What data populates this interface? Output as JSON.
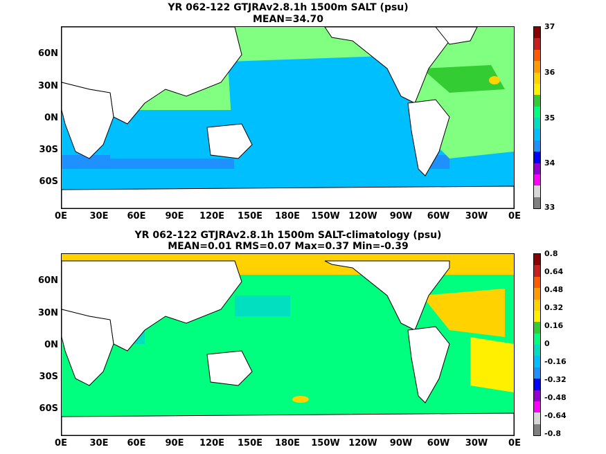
{
  "panel_top": {
    "title": "YR 062-122 GTJRAv2.8.1h 1500m SALT (psu)",
    "subtitle": "MEAN=34.70",
    "y_labels": [
      "60N",
      "30N",
      "0N",
      "30S",
      "60S"
    ],
    "x_labels": [
      "0E",
      "30E",
      "60E",
      "90E",
      "120E",
      "150E",
      "180E",
      "150W",
      "120W",
      "90W",
      "60W",
      "30W",
      "0E"
    ],
    "colorbar_labels": [
      "37",
      "36",
      "35",
      "34",
      "33"
    ],
    "colorbar_colors": [
      "#8b0000",
      "#c81e1e",
      "#ff5a00",
      "#ff9a00",
      "#ffd200",
      "#fff000",
      "#33cc33",
      "#00ff7f",
      "#00e0c0",
      "#00bfff",
      "#1e90ff",
      "#0000ff",
      "#9400d3",
      "#ff00ff",
      "#d8d8d8",
      "#808080"
    ]
  },
  "panel_bottom": {
    "title": "YR 062-122 GTJRAv2.8.1h 1500m SALT-climatology (psu)",
    "subtitle": "MEAN=0.01   RMS=0.07   Max=0.37   Min=-0.39",
    "y_labels": [
      "60N",
      "30N",
      "0N",
      "30S",
      "60S"
    ],
    "x_labels": [
      "0E",
      "30E",
      "60E",
      "90E",
      "120E",
      "150E",
      "180E",
      "150W",
      "120W",
      "90W",
      "60W",
      "30W",
      "0E"
    ],
    "colorbar_labels": [
      "0.8",
      "0.64",
      "0.48",
      "0.32",
      "0.16",
      "0",
      "-0.16",
      "-0.32",
      "-0.48",
      "-0.64",
      "-0.8"
    ],
    "colorbar_colors": [
      "#8b0000",
      "#c81e1e",
      "#ff5a00",
      "#ff9a00",
      "#ffd200",
      "#fff000",
      "#33cc33",
      "#00ff7f",
      "#00e0c0",
      "#00bfff",
      "#1e90ff",
      "#0000ff",
      "#9400d3",
      "#ff00ff",
      "#d8d8d8",
      "#808080"
    ]
  },
  "colors": {
    "pacific_top": "#00bfff",
    "indian_top": "#00bfff",
    "atlantic_top": "#80ff80",
    "southern_top": "#1e90ff",
    "bottom_main": "#00ff7f",
    "bottom_warm": "#ffd200",
    "bottom_cool": "#00e0c0",
    "land": "#ffffff"
  }
}
